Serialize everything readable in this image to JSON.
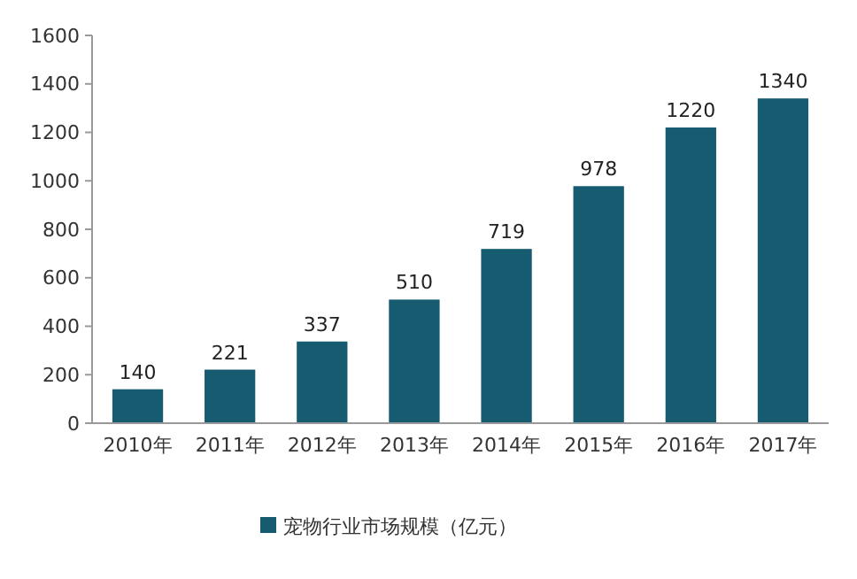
{
  "chart_data": {
    "type": "bar",
    "categories": [
      "2010年",
      "2011年",
      "2012年",
      "2013年",
      "2014年",
      "2015年",
      "2016年",
      "2017年"
    ],
    "series": [
      {
        "name": "宠物行业市场规模（亿元）",
        "color": "#165b70",
        "values": [
          140,
          221,
          337,
          510,
          719,
          978,
          1220,
          1340
        ]
      }
    ],
    "ylim": [
      0,
      1600
    ],
    "yticks": [
      0,
      200,
      400,
      600,
      800,
      1000,
      1200,
      1400,
      1600
    ],
    "grid": false,
    "legend": "bottom",
    "data_labels": true
  }
}
